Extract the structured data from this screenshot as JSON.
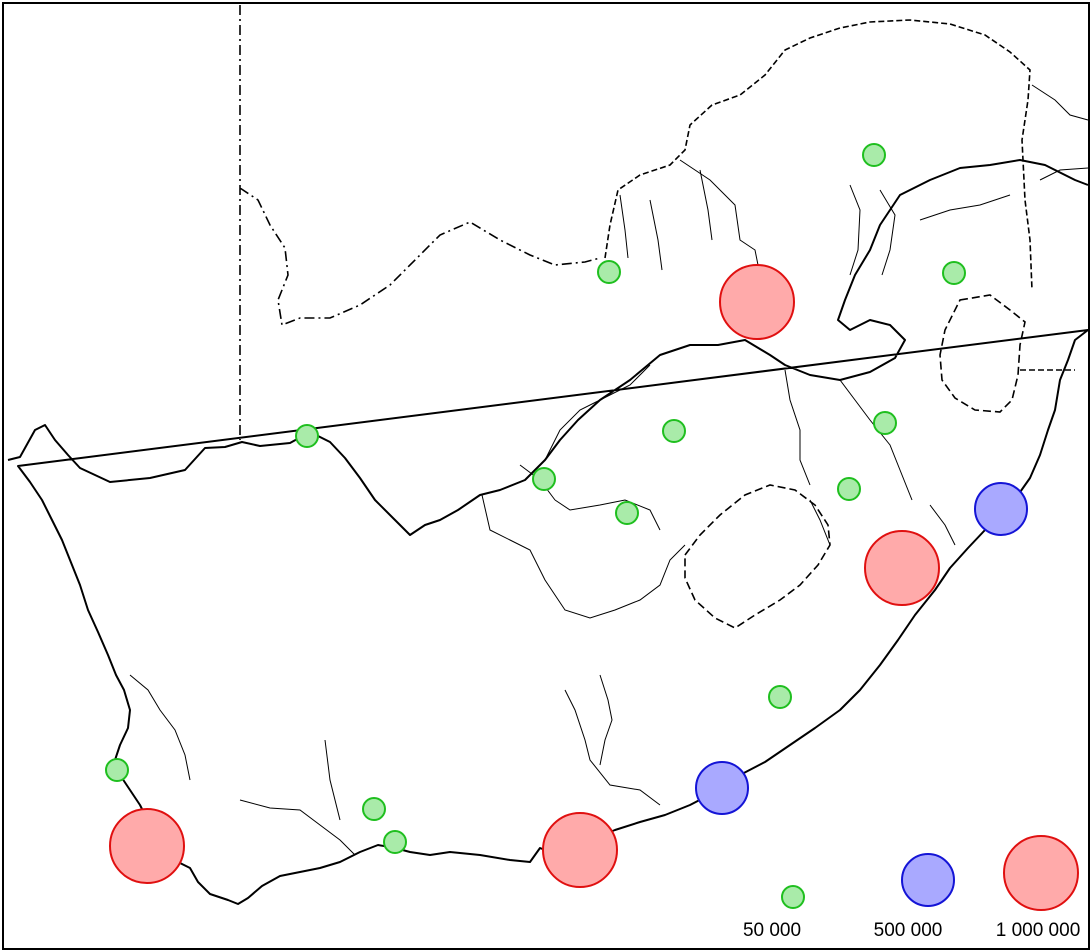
{
  "map": {
    "colors": {
      "small_fill": "#a9eba9",
      "small_stroke": "#1fbf1f",
      "medium_fill": "#a9a9ff",
      "medium_stroke": "#1414d6",
      "large_fill": "#ffaaaa",
      "large_stroke": "#e01010",
      "border": "#000000"
    },
    "legend": [
      {
        "label": "50 000",
        "class": "small"
      },
      {
        "label": "500 000",
        "class": "medium"
      },
      {
        "label": "1 000 000",
        "class": "large"
      }
    ],
    "cities": [
      {
        "class": "small"
      },
      {
        "class": "small"
      },
      {
        "class": "large"
      },
      {
        "class": "small"
      },
      {
        "class": "small"
      },
      {
        "class": "small"
      },
      {
        "class": "small"
      },
      {
        "class": "small"
      },
      {
        "class": "small"
      },
      {
        "class": "small"
      },
      {
        "class": "medium"
      },
      {
        "class": "large"
      },
      {
        "class": "small"
      },
      {
        "class": "medium"
      },
      {
        "class": "small"
      },
      {
        "class": "large"
      },
      {
        "class": "small"
      },
      {
        "class": "small"
      },
      {
        "class": "large"
      }
    ]
  }
}
